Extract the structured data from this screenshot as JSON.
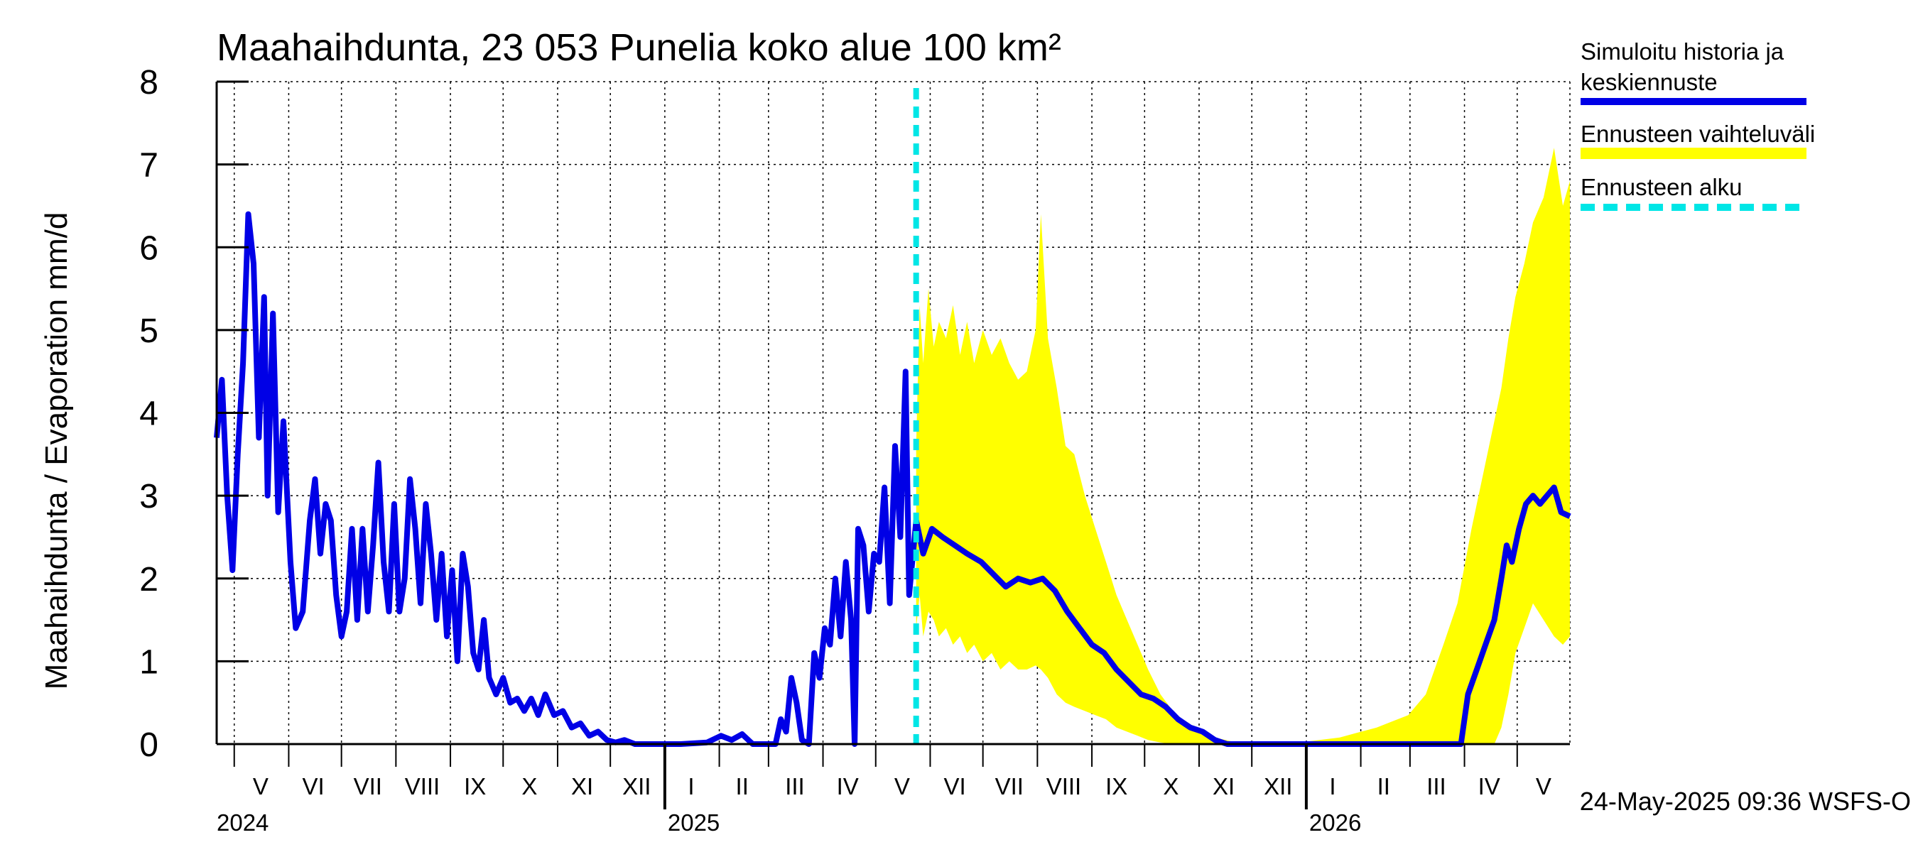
{
  "chart_data": {
    "type": "line",
    "title": "Maahaihdunta, 23 053 Punelia koko alue 100 km²",
    "ylabel": "Maahaihdunta / Evaporation   mm/d",
    "ylim": [
      0,
      8
    ],
    "yticks": [
      0,
      1,
      2,
      3,
      4,
      5,
      6,
      7,
      8
    ],
    "grid": true,
    "legend_position": "right",
    "x_range": [
      "2024-04-21",
      "2026-05-31"
    ],
    "forecast_start": "2025-05-24",
    "month_labels": [
      {
        "label": "V",
        "date": "2024-05-16"
      },
      {
        "label": "VI",
        "date": "2024-06-15"
      },
      {
        "label": "VII",
        "date": "2024-07-16"
      },
      {
        "label": "VIII",
        "date": "2024-08-16"
      },
      {
        "label": "IX",
        "date": "2024-09-15"
      },
      {
        "label": "X",
        "date": "2024-10-16"
      },
      {
        "label": "XI",
        "date": "2024-11-15"
      },
      {
        "label": "XII",
        "date": "2024-12-16"
      },
      {
        "label": "I",
        "date": "2025-01-16"
      },
      {
        "label": "II",
        "date": "2025-02-14"
      },
      {
        "label": "III",
        "date": "2025-03-16"
      },
      {
        "label": "IV",
        "date": "2025-04-15"
      },
      {
        "label": "V",
        "date": "2025-05-16"
      },
      {
        "label": "VI",
        "date": "2025-06-15"
      },
      {
        "label": "VII",
        "date": "2025-07-16"
      },
      {
        "label": "VIII",
        "date": "2025-08-16"
      },
      {
        "label": "IX",
        "date": "2025-09-15"
      },
      {
        "label": "X",
        "date": "2025-10-16"
      },
      {
        "label": "XI",
        "date": "2025-11-15"
      },
      {
        "label": "XII",
        "date": "2025-12-16"
      },
      {
        "label": "I",
        "date": "2026-01-16"
      },
      {
        "label": "II",
        "date": "2026-02-14"
      },
      {
        "label": "III",
        "date": "2026-03-16"
      },
      {
        "label": "IV",
        "date": "2026-04-15"
      },
      {
        "label": "V",
        "date": "2026-05-16"
      }
    ],
    "year_labels": [
      {
        "label": "2024",
        "date": "2024-04-21"
      },
      {
        "label": "2025",
        "date": "2025-01-01"
      },
      {
        "label": "2026",
        "date": "2026-01-01"
      }
    ],
    "series": [
      {
        "name": "Simuloitu historia ja keskiennuste",
        "color": "#0000e6",
        "points": [
          [
            "2024-04-21",
            3.7
          ],
          [
            "2024-04-24",
            4.4
          ],
          [
            "2024-04-27",
            3.0
          ],
          [
            "2024-04-30",
            2.1
          ],
          [
            "2024-05-03",
            3.5
          ],
          [
            "2024-05-06",
            4.6
          ],
          [
            "2024-05-09",
            6.4
          ],
          [
            "2024-05-12",
            5.8
          ],
          [
            "2024-05-15",
            3.7
          ],
          [
            "2024-05-18",
            5.4
          ],
          [
            "2024-05-20",
            3.0
          ],
          [
            "2024-05-23",
            5.2
          ],
          [
            "2024-05-26",
            2.8
          ],
          [
            "2024-05-29",
            3.9
          ],
          [
            "2024-06-02",
            2.2
          ],
          [
            "2024-06-05",
            1.4
          ],
          [
            "2024-06-09",
            1.6
          ],
          [
            "2024-06-13",
            2.7
          ],
          [
            "2024-06-16",
            3.2
          ],
          [
            "2024-06-19",
            2.3
          ],
          [
            "2024-06-22",
            2.9
          ],
          [
            "2024-06-25",
            2.7
          ],
          [
            "2024-06-28",
            1.8
          ],
          [
            "2024-07-01",
            1.3
          ],
          [
            "2024-07-04",
            1.6
          ],
          [
            "2024-07-07",
            2.6
          ],
          [
            "2024-07-10",
            1.5
          ],
          [
            "2024-07-13",
            2.6
          ],
          [
            "2024-07-16",
            1.6
          ],
          [
            "2024-07-19",
            2.4
          ],
          [
            "2024-07-22",
            3.4
          ],
          [
            "2024-07-25",
            2.2
          ],
          [
            "2024-07-28",
            1.6
          ],
          [
            "2024-07-31",
            2.9
          ],
          [
            "2024-08-03",
            1.6
          ],
          [
            "2024-08-06",
            2.0
          ],
          [
            "2024-08-09",
            3.2
          ],
          [
            "2024-08-12",
            2.6
          ],
          [
            "2024-08-15",
            1.7
          ],
          [
            "2024-08-18",
            2.9
          ],
          [
            "2024-08-21",
            2.3
          ],
          [
            "2024-08-24",
            1.5
          ],
          [
            "2024-08-27",
            2.3
          ],
          [
            "2024-08-30",
            1.3
          ],
          [
            "2024-09-02",
            2.1
          ],
          [
            "2024-09-05",
            1.0
          ],
          [
            "2024-09-08",
            2.3
          ],
          [
            "2024-09-11",
            1.9
          ],
          [
            "2024-09-14",
            1.1
          ],
          [
            "2024-09-17",
            0.9
          ],
          [
            "2024-09-20",
            1.5
          ],
          [
            "2024-09-23",
            0.8
          ],
          [
            "2024-09-27",
            0.6
          ],
          [
            "2024-10-01",
            0.8
          ],
          [
            "2024-10-05",
            0.5
          ],
          [
            "2024-10-09",
            0.55
          ],
          [
            "2024-10-13",
            0.4
          ],
          [
            "2024-10-17",
            0.55
          ],
          [
            "2024-10-21",
            0.35
          ],
          [
            "2024-10-25",
            0.6
          ],
          [
            "2024-10-30",
            0.35
          ],
          [
            "2024-11-04",
            0.4
          ],
          [
            "2024-11-09",
            0.2
          ],
          [
            "2024-11-14",
            0.25
          ],
          [
            "2024-11-19",
            0.1
          ],
          [
            "2024-11-24",
            0.15
          ],
          [
            "2024-11-29",
            0.05
          ],
          [
            "2024-12-04",
            0.02
          ],
          [
            "2024-12-09",
            0.05
          ],
          [
            "2024-12-15",
            0.0
          ],
          [
            "2025-01-10",
            0.0
          ],
          [
            "2025-01-25",
            0.02
          ],
          [
            "2025-02-02",
            0.1
          ],
          [
            "2025-02-08",
            0.05
          ],
          [
            "2025-02-14",
            0.12
          ],
          [
            "2025-02-20",
            0.0
          ],
          [
            "2025-03-05",
            0.0
          ],
          [
            "2025-03-08",
            0.3
          ],
          [
            "2025-03-11",
            0.15
          ],
          [
            "2025-03-14",
            0.8
          ],
          [
            "2025-03-17",
            0.5
          ],
          [
            "2025-03-20",
            0.05
          ],
          [
            "2025-03-24",
            0.0
          ],
          [
            "2025-03-27",
            1.1
          ],
          [
            "2025-03-30",
            0.8
          ],
          [
            "2025-04-02",
            1.4
          ],
          [
            "2025-04-05",
            1.2
          ],
          [
            "2025-04-08",
            2.0
          ],
          [
            "2025-04-11",
            1.3
          ],
          [
            "2025-04-14",
            2.2
          ],
          [
            "2025-04-17",
            1.5
          ],
          [
            "2025-04-19",
            0.0
          ],
          [
            "2025-04-21",
            2.6
          ],
          [
            "2025-04-24",
            2.4
          ],
          [
            "2025-04-27",
            1.6
          ],
          [
            "2025-04-30",
            2.3
          ],
          [
            "2025-05-03",
            2.2
          ],
          [
            "2025-05-06",
            3.1
          ],
          [
            "2025-05-09",
            1.7
          ],
          [
            "2025-05-12",
            3.6
          ],
          [
            "2025-05-15",
            2.5
          ],
          [
            "2025-05-18",
            4.5
          ],
          [
            "2025-05-20",
            1.8
          ],
          [
            "2025-05-24",
            2.7
          ],
          [
            "2025-05-28",
            2.3
          ],
          [
            "2025-06-02",
            2.6
          ],
          [
            "2025-06-08",
            2.5
          ],
          [
            "2025-06-15",
            2.4
          ],
          [
            "2025-06-22",
            2.3
          ],
          [
            "2025-06-30",
            2.2
          ],
          [
            "2025-07-07",
            2.05
          ],
          [
            "2025-07-14",
            1.9
          ],
          [
            "2025-07-21",
            2.0
          ],
          [
            "2025-07-28",
            1.95
          ],
          [
            "2025-08-04",
            2.0
          ],
          [
            "2025-08-11",
            1.85
          ],
          [
            "2025-08-18",
            1.6
          ],
          [
            "2025-08-25",
            1.4
          ],
          [
            "2025-09-01",
            1.2
          ],
          [
            "2025-09-08",
            1.1
          ],
          [
            "2025-09-15",
            0.9
          ],
          [
            "2025-09-22",
            0.75
          ],
          [
            "2025-09-29",
            0.6
          ],
          [
            "2025-10-06",
            0.55
          ],
          [
            "2025-10-13",
            0.45
          ],
          [
            "2025-10-20",
            0.3
          ],
          [
            "2025-10-27",
            0.2
          ],
          [
            "2025-11-03",
            0.15
          ],
          [
            "2025-11-10",
            0.05
          ],
          [
            "2025-11-17",
            0.0
          ],
          [
            "2026-03-30",
            0.0
          ],
          [
            "2026-04-03",
            0.6
          ],
          [
            "2026-04-08",
            0.9
          ],
          [
            "2026-04-13",
            1.2
          ],
          [
            "2026-04-18",
            1.5
          ],
          [
            "2026-04-22",
            2.0
          ],
          [
            "2026-04-25",
            2.4
          ],
          [
            "2026-04-28",
            2.2
          ],
          [
            "2026-05-02",
            2.6
          ],
          [
            "2026-05-06",
            2.9
          ],
          [
            "2026-05-10",
            3.0
          ],
          [
            "2026-05-14",
            2.9
          ],
          [
            "2026-05-18",
            3.0
          ],
          [
            "2026-05-22",
            3.1
          ],
          [
            "2026-05-26",
            2.8
          ],
          [
            "2026-05-31",
            2.75
          ]
        ]
      },
      {
        "name": "Ennusteen vaihteluväli",
        "color": "#ffff00",
        "band": [
          [
            "2025-05-24",
            1.4,
            3.6
          ],
          [
            "2025-05-26",
            1.8,
            5.3
          ],
          [
            "2025-05-28",
            1.3,
            4.6
          ],
          [
            "2025-05-31",
            1.6,
            5.5
          ],
          [
            "2025-06-03",
            1.5,
            4.8
          ],
          [
            "2025-06-06",
            1.3,
            5.1
          ],
          [
            "2025-06-10",
            1.4,
            4.9
          ],
          [
            "2025-06-14",
            1.2,
            5.3
          ],
          [
            "2025-06-18",
            1.3,
            4.7
          ],
          [
            "2025-06-22",
            1.1,
            5.1
          ],
          [
            "2025-06-26",
            1.2,
            4.6
          ],
          [
            "2025-07-01",
            1.0,
            5.0
          ],
          [
            "2025-07-06",
            1.1,
            4.7
          ],
          [
            "2025-07-11",
            0.9,
            4.9
          ],
          [
            "2025-07-16",
            1.0,
            4.6
          ],
          [
            "2025-07-21",
            0.9,
            4.4
          ],
          [
            "2025-07-26",
            0.9,
            4.5
          ],
          [
            "2025-07-31",
            0.95,
            5.0
          ],
          [
            "2025-08-03",
            0.9,
            6.4
          ],
          [
            "2025-08-07",
            0.8,
            4.9
          ],
          [
            "2025-08-12",
            0.6,
            4.3
          ],
          [
            "2025-08-17",
            0.5,
            3.6
          ],
          [
            "2025-08-22",
            0.45,
            3.5
          ],
          [
            "2025-08-28",
            0.4,
            3.0
          ],
          [
            "2025-09-03",
            0.35,
            2.6
          ],
          [
            "2025-09-09",
            0.3,
            2.2
          ],
          [
            "2025-09-15",
            0.2,
            1.8
          ],
          [
            "2025-09-21",
            0.15,
            1.5
          ],
          [
            "2025-09-27",
            0.1,
            1.2
          ],
          [
            "2025-10-03",
            0.05,
            0.9
          ],
          [
            "2025-10-10",
            0.02,
            0.6
          ],
          [
            "2025-10-17",
            0.0,
            0.4
          ],
          [
            "2025-10-24",
            0.0,
            0.25
          ],
          [
            "2025-10-31",
            0.0,
            0.15
          ],
          [
            "2025-11-10",
            0.0,
            0.08
          ],
          [
            "2025-11-20",
            0.0,
            0.03
          ],
          [
            "2025-12-15",
            0.0,
            0.0
          ],
          [
            "2026-01-01",
            0.0,
            0.03
          ],
          [
            "2026-01-20",
            0.0,
            0.08
          ],
          [
            "2026-02-10",
            0.0,
            0.2
          ],
          [
            "2026-02-28",
            0.0,
            0.35
          ],
          [
            "2026-03-10",
            0.0,
            0.6
          ],
          [
            "2026-03-20",
            0.0,
            1.2
          ],
          [
            "2026-03-28",
            0.0,
            1.7
          ],
          [
            "2026-04-05",
            0.0,
            2.6
          ],
          [
            "2026-04-12",
            0.0,
            3.3
          ],
          [
            "2026-04-18",
            0.0,
            3.9
          ],
          [
            "2026-04-22",
            0.2,
            4.3
          ],
          [
            "2026-04-26",
            0.6,
            4.9
          ],
          [
            "2026-04-30",
            1.1,
            5.4
          ],
          [
            "2026-05-05",
            1.4,
            5.8
          ],
          [
            "2026-05-10",
            1.7,
            6.3
          ],
          [
            "2026-05-16",
            1.5,
            6.6
          ],
          [
            "2026-05-22",
            1.3,
            7.2
          ],
          [
            "2026-05-27",
            1.2,
            6.5
          ],
          [
            "2026-05-31",
            1.3,
            6.8
          ]
        ]
      }
    ]
  },
  "legend": {
    "history_line1": "Simuloitu historia ja",
    "history_line2": "keskiennuste",
    "range": "Ennusteen vaihteluväli",
    "forecast_start": "Ennusteen alku",
    "history_color": "#0000e6",
    "range_color": "#ffff00",
    "forecast_color": "#00e6e6"
  },
  "footer": {
    "timestamp": "24-May-2025 09:36 WSFS-O"
  }
}
